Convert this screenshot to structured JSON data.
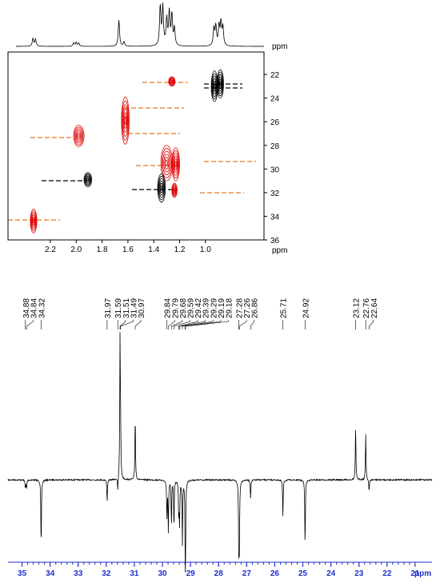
{
  "chart_data": [
    {
      "type": "proton",
      "peaks": [
        2.335,
        2.315,
        2.02,
        2.0,
        1.98,
        1.67,
        1.63,
        1.35,
        1.33,
        1.3,
        1.28,
        1.26,
        1.24,
        0.935,
        0.92,
        0.895,
        0.88,
        0.865
      ],
      "intensity": [
        18,
        16,
        8,
        9,
        7,
        60,
        10,
        90,
        88,
        60,
        75,
        70,
        40,
        40,
        45,
        45,
        52,
        42
      ]
    },
    {
      "type": "hsqc",
      "x_label": "ppm",
      "xlim": [
        2.528,
        0.547
      ],
      "ylim": [
        20.1,
        36
      ],
      "xticks": [
        2.2,
        {
          "value": 2,
          "label": "2.0"
        },
        1.8,
        1.6,
        1.4,
        1.2,
        {
          "value": 1,
          "label": "1.0"
        }
      ],
      "yticks": [
        22,
        24,
        26,
        28,
        30,
        32,
        34,
        36
      ],
      "y_label": "ppm",
      "cross_peaks": [
        {
          "x": 1.26,
          "y": 22.6,
          "dx": 0.025,
          "dy": 0.4,
          "color": "#e00000"
        },
        {
          "x": 0.93,
          "y": 23.0,
          "dx": 0.025,
          "dy": 1.3,
          "color": "#000000"
        },
        {
          "x": 0.885,
          "y": 22.8,
          "dx": 0.025,
          "dy": 1.2,
          "color": "#000000"
        },
        {
          "x": 1.62,
          "y": 25.9,
          "dx": 0.03,
          "dy": 2.0,
          "color": "#e00000"
        },
        {
          "x": 1.98,
          "y": 27.2,
          "dx": 0.04,
          "dy": 0.9,
          "color": "#e00000"
        },
        {
          "x": 1.3,
          "y": 29.5,
          "dx": 0.045,
          "dy": 1.5,
          "color": "#e00000"
        },
        {
          "x": 1.23,
          "y": 29.6,
          "dx": 0.03,
          "dy": 1.4,
          "color": "#e00000"
        },
        {
          "x": 1.91,
          "y": 30.9,
          "dx": 0.03,
          "dy": 0.6,
          "color": "#000000"
        },
        {
          "x": 1.34,
          "y": 31.6,
          "dx": 0.03,
          "dy": 1.2,
          "color": "#000000"
        },
        {
          "x": 1.24,
          "y": 31.8,
          "dx": 0.02,
          "dy": 0.6,
          "color": "#e00000"
        },
        {
          "x": 2.33,
          "y": 34.4,
          "dx": 0.025,
          "dy": 1.0,
          "color": "#e00000"
        }
      ]
    },
    {
      "type": "dept",
      "x_label": "ppm",
      "xlim": [
        35.5,
        20.4
      ],
      "xticks": [
        35,
        34,
        33,
        32,
        31,
        30,
        29,
        28,
        27,
        26,
        25,
        24,
        23,
        22,
        21
      ],
      "peak_labels": [
        34.88,
        34.84,
        34.32,
        31.97,
        31.59,
        31.51,
        31.49,
        30.97,
        29.84,
        29.79,
        29.68,
        29.59,
        29.42,
        29.39,
        29.29,
        29.19,
        29.18,
        27.28,
        27.26,
        26.86,
        25.71,
        24.92,
        23.12,
        22.76,
        22.64
      ],
      "intensity": [
        -6,
        -6,
        -49,
        -16,
        -10,
        100,
        30,
        47,
        -28,
        -36,
        -32,
        -34,
        -25,
        -30,
        -46,
        -30,
        -49,
        -51,
        -40,
        -13,
        -26,
        -48,
        39,
        33,
        -9
      ]
    }
  ]
}
